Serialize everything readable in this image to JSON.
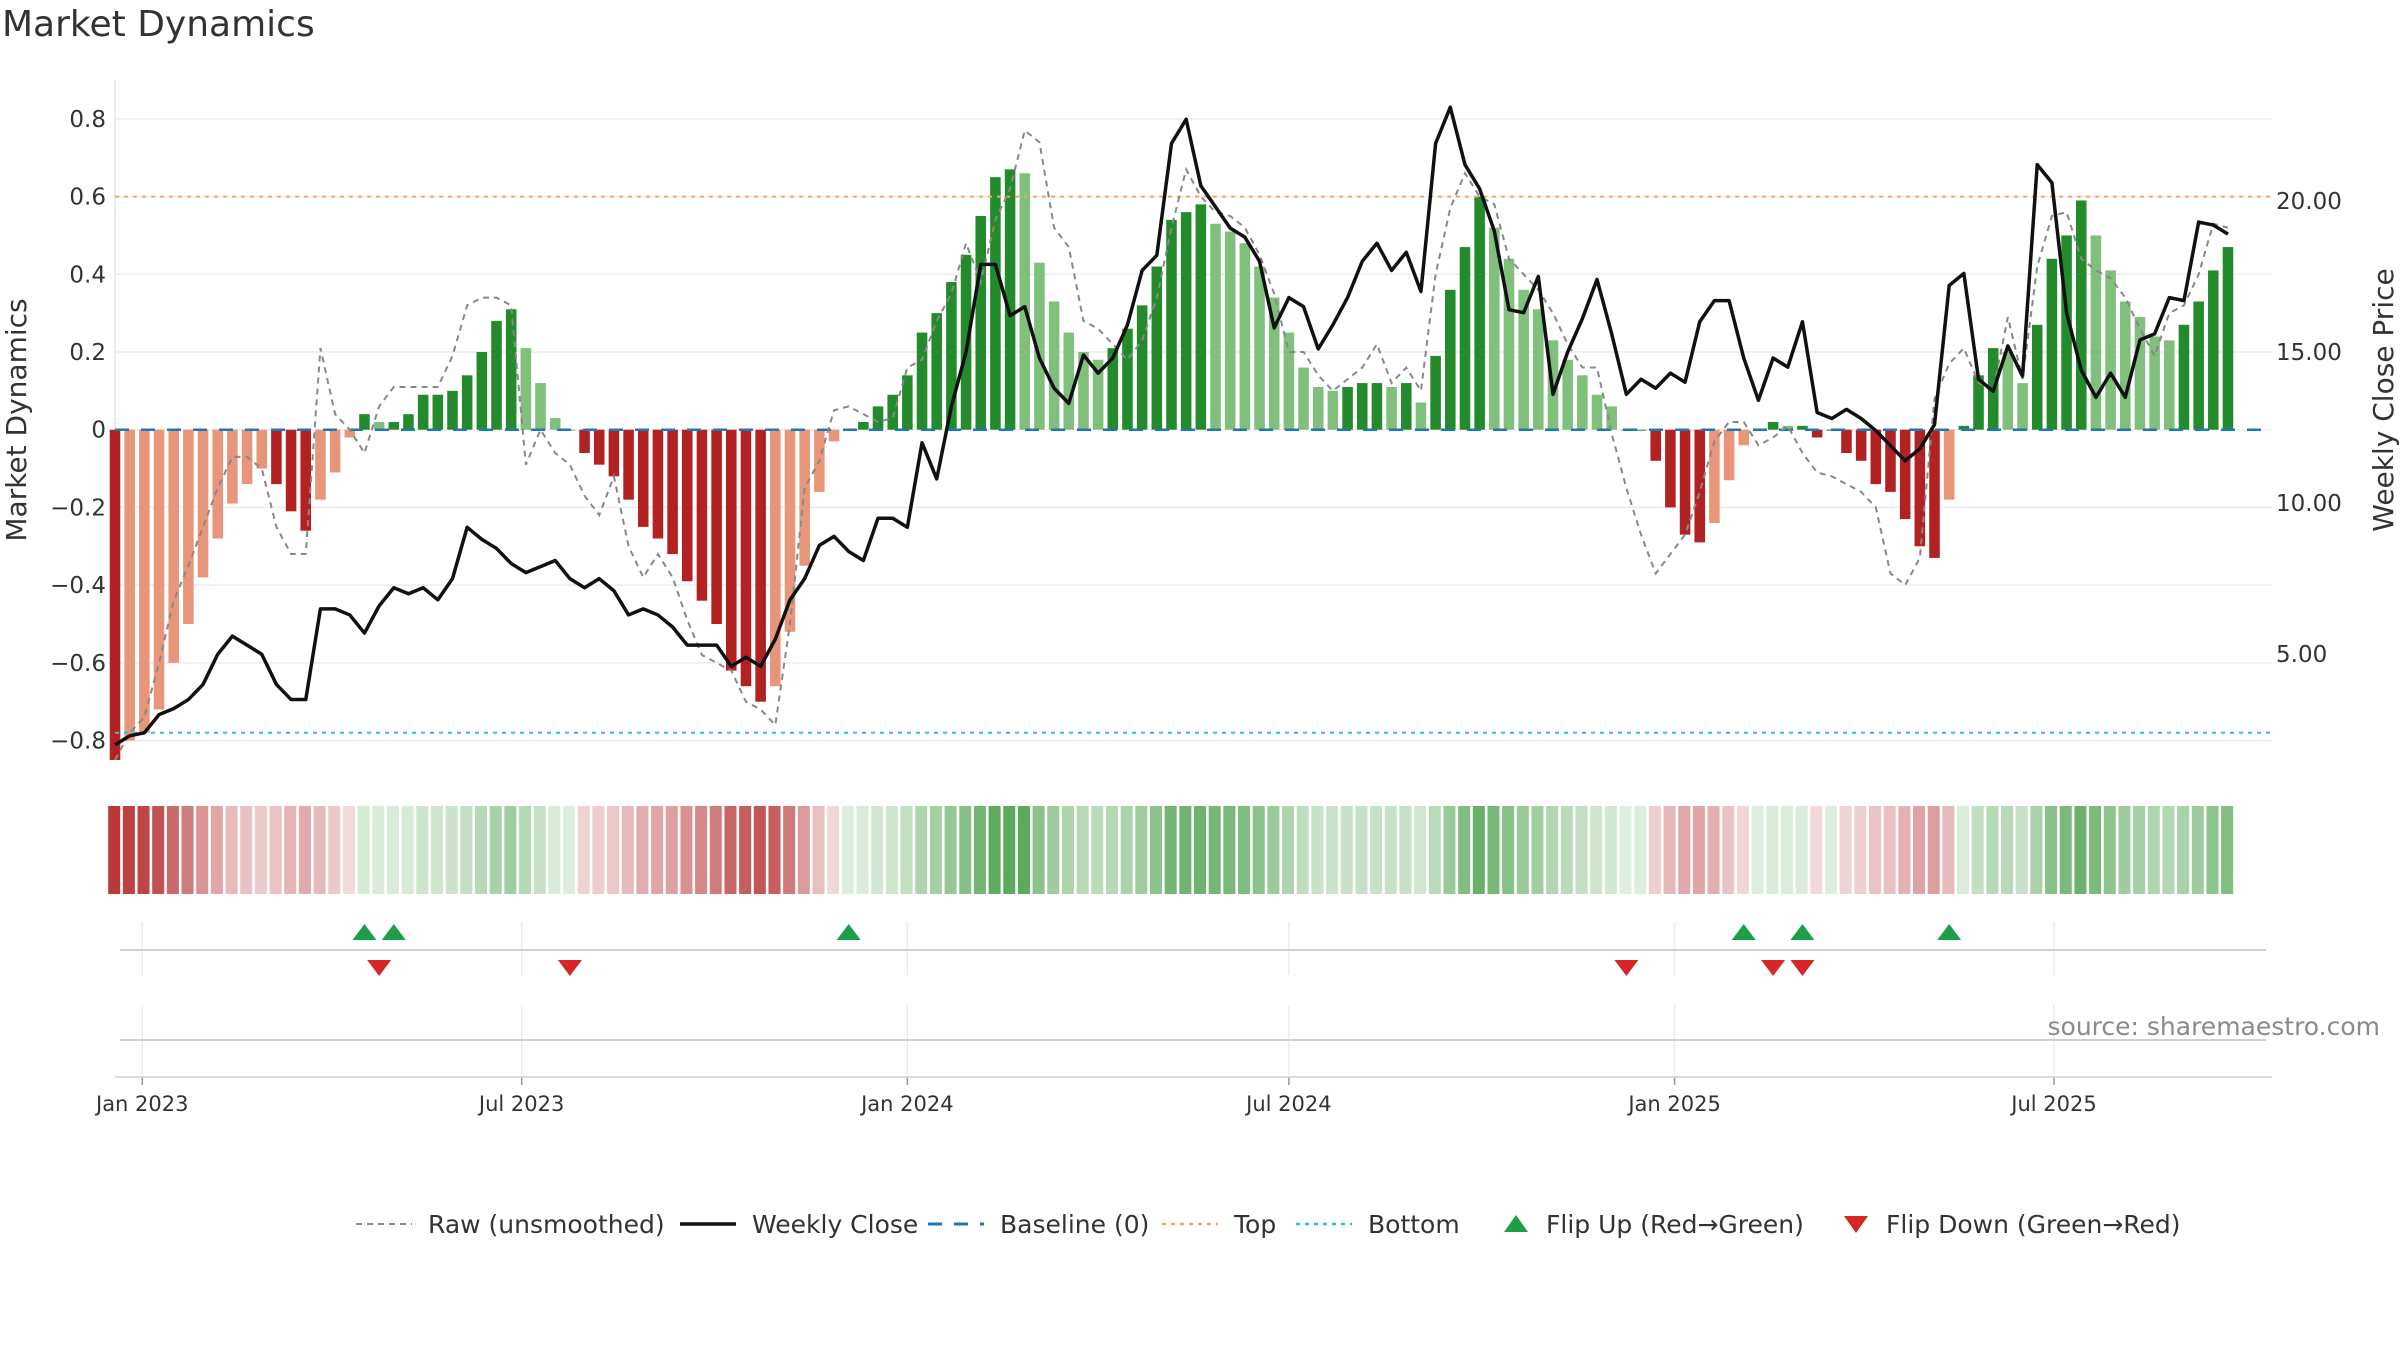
{
  "title": "Market Dynamics",
  "source": "source: sharemaestro.com",
  "colors": {
    "strong_green": "#238b2b",
    "light_green": "#80bf7c",
    "strong_red": "#b22222",
    "light_red": "#e8967a",
    "close_line": "#111111",
    "raw_line": "#888888",
    "baseline": "#1f77b4",
    "top": "#f4a460",
    "bottom": "#2ec4c4",
    "flip_up": "#1e9e48",
    "flip_down": "#d62728"
  },
  "chart_data": {
    "type": "bar",
    "title": "Market Dynamics",
    "ylabel": "Market Dynamics",
    "y2label": "Weekly Close Price",
    "ylim": [
      -0.85,
      0.9
    ],
    "y2lim": [
      1.5,
      24.0
    ],
    "yticks": [
      -0.8,
      -0.6,
      -0.4,
      -0.2,
      0,
      0.2,
      0.4,
      0.6,
      0.8
    ],
    "ytick_labels": [
      "−0.8",
      "−0.6",
      "−0.4",
      "−0.2",
      "0",
      "0.2",
      "0.4",
      "0.6",
      "0.8"
    ],
    "y2ticks": [
      5,
      10,
      15,
      20
    ],
    "y2tick_labels": [
      "5.00",
      "10.00",
      "15.00",
      "20.00"
    ],
    "x_range": [
      "2022-12-19",
      "2025-10-13"
    ],
    "xticks": [
      "2023-01-01",
      "2023-07-01",
      "2024-01-01",
      "2024-07-01",
      "2025-01-01",
      "2025-07-01"
    ],
    "xtick_labels": [
      "Jan 2023",
      "Jul 2023",
      "Jan 2024",
      "Jul 2024",
      "Jan 2025",
      "Jul 2025"
    ],
    "first_week": "2022-12-19",
    "top_level": 0.6,
    "bottom_level": -0.78,
    "baseline_level": 0,
    "grid": true,
    "legend_position": "bottom",
    "legend": [
      "Raw (unsmoothed)",
      "Weekly Close",
      "Baseline (0)",
      "Top",
      "Bottom",
      "Flip Up (Red→Green)",
      "Flip Down (Green→Red)"
    ],
    "dynamics": [
      -0.85,
      -0.8,
      -0.78,
      -0.72,
      -0.6,
      -0.5,
      -0.38,
      -0.28,
      -0.19,
      -0.14,
      -0.1,
      -0.14,
      -0.21,
      -0.26,
      -0.18,
      -0.11,
      -0.02,
      0.04,
      0.02,
      0.02,
      0.04,
      0.09,
      0.09,
      0.1,
      0.14,
      0.2,
      0.28,
      0.31,
      0.21,
      0.12,
      0.03,
      0.0,
      -0.06,
      -0.09,
      -0.12,
      -0.18,
      -0.25,
      -0.28,
      -0.32,
      -0.39,
      -0.44,
      -0.5,
      -0.62,
      -0.66,
      -0.7,
      -0.66,
      -0.52,
      -0.35,
      -0.16,
      -0.03,
      0.0,
      0.02,
      0.06,
      0.09,
      0.14,
      0.25,
      0.3,
      0.38,
      0.45,
      0.55,
      0.65,
      0.67,
      0.66,
      0.43,
      0.33,
      0.25,
      0.2,
      0.18,
      0.21,
      0.26,
      0.32,
      0.42,
      0.54,
      0.56,
      0.58,
      0.53,
      0.51,
      0.48,
      0.42,
      0.34,
      0.25,
      0.16,
      0.11,
      0.1,
      0.11,
      0.12,
      0.12,
      0.11,
      0.12,
      0.07,
      0.19,
      0.36,
      0.47,
      0.6,
      0.52,
      0.44,
      0.36,
      0.31,
      0.23,
      0.18,
      0.14,
      0.09,
      0.06,
      0.0,
      0.0,
      -0.08,
      -0.2,
      -0.27,
      -0.29,
      -0.24,
      -0.13,
      -0.04,
      0.0,
      0.02,
      0.01,
      0.01,
      -0.02,
      0.0,
      -0.06,
      -0.08,
      -0.14,
      -0.16,
      -0.23,
      -0.3,
      -0.33,
      -0.18,
      0.01,
      0.14,
      0.21,
      0.2,
      0.12,
      0.27,
      0.44,
      0.5,
      0.59,
      0.5,
      0.41,
      0.33,
      0.29,
      0.24,
      0.23,
      0.27,
      0.33,
      0.41,
      0.47
    ],
    "raw": [
      -0.85,
      -0.78,
      -0.74,
      -0.6,
      -0.44,
      -0.35,
      -0.25,
      -0.15,
      -0.07,
      -0.07,
      -0.1,
      -0.25,
      -0.32,
      -0.32,
      0.21,
      0.04,
      0.0,
      -0.06,
      0.06,
      0.11,
      0.11,
      0.11,
      0.11,
      0.19,
      0.32,
      0.34,
      0.34,
      0.32,
      -0.09,
      0.0,
      -0.06,
      -0.09,
      -0.17,
      -0.22,
      -0.12,
      -0.3,
      -0.38,
      -0.32,
      -0.38,
      -0.49,
      -0.58,
      -0.6,
      -0.62,
      -0.7,
      -0.72,
      -0.76,
      -0.5,
      -0.15,
      -0.08,
      0.05,
      0.06,
      0.04,
      0.02,
      0.03,
      0.16,
      0.18,
      0.28,
      0.35,
      0.48,
      0.38,
      0.54,
      0.62,
      0.77,
      0.74,
      0.52,
      0.47,
      0.28,
      0.26,
      0.22,
      0.18,
      0.23,
      0.34,
      0.52,
      0.67,
      0.6,
      0.56,
      0.55,
      0.52,
      0.45,
      0.35,
      0.2,
      0.2,
      0.14,
      0.1,
      0.13,
      0.16,
      0.22,
      0.12,
      0.16,
      0.1,
      0.4,
      0.57,
      0.66,
      0.6,
      0.58,
      0.44,
      0.4,
      0.36,
      0.3,
      0.22,
      0.16,
      0.16,
      -0.01,
      -0.15,
      -0.27,
      -0.37,
      -0.32,
      -0.27,
      -0.16,
      -0.03,
      0.02,
      0.02,
      -0.04,
      -0.02,
      0.01,
      -0.06,
      -0.11,
      -0.12,
      -0.14,
      -0.16,
      -0.2,
      -0.37,
      -0.4,
      -0.33,
      0.08,
      0.17,
      0.21,
      0.12,
      0.1,
      0.29,
      0.13,
      0.42,
      0.55,
      0.56,
      0.44,
      0.41,
      0.39,
      0.34,
      0.26,
      0.19,
      0.3,
      0.32,
      0.4,
      0.53,
      0.52
    ],
    "close": [
      2.0,
      2.3,
      2.4,
      3.0,
      3.2,
      3.5,
      4.0,
      5.0,
      5.6,
      5.3,
      5.0,
      4.0,
      3.5,
      3.5,
      6.5,
      6.5,
      6.3,
      5.7,
      6.6,
      7.2,
      7.0,
      7.2,
      6.8,
      7.5,
      9.2,
      8.8,
      8.5,
      8.0,
      7.7,
      7.9,
      8.1,
      7.5,
      7.2,
      7.5,
      7.1,
      6.3,
      6.5,
      6.3,
      5.9,
      5.3,
      5.3,
      5.3,
      4.6,
      4.9,
      4.6,
      5.5,
      6.8,
      7.5,
      8.6,
      8.9,
      8.4,
      8.1,
      9.5,
      9.5,
      9.2,
      12.0,
      10.8,
      13.2,
      15.0,
      17.9,
      17.9,
      16.2,
      16.5,
      14.8,
      13.8,
      13.3,
      14.9,
      14.3,
      14.8,
      15.9,
      17.7,
      18.2,
      21.9,
      22.7,
      20.5,
      19.8,
      19.1,
      18.8,
      18.0,
      15.8,
      16.8,
      16.5,
      15.1,
      15.9,
      16.8,
      18.0,
      18.6,
      17.7,
      18.3,
      17.0,
      21.9,
      23.1,
      21.2,
      20.4,
      19.0,
      16.4,
      16.3,
      17.5,
      13.6,
      15.0,
      16.1,
      17.4,
      15.6,
      13.6,
      14.1,
      13.8,
      14.3,
      14.0,
      16.0,
      16.7,
      16.7,
      14.8,
      13.4,
      14.8,
      14.5,
      16.0,
      13.0,
      12.8,
      13.1,
      12.8,
      12.4,
      11.9,
      11.4,
      11.8,
      12.6,
      17.2,
      17.6,
      14.1,
      13.7,
      15.2,
      14.2,
      21.2,
      20.6,
      16.3,
      14.4,
      13.5,
      14.3,
      13.5,
      15.4,
      15.6,
      16.8,
      16.7,
      19.3,
      19.2,
      18.9
    ],
    "flip_up_weeks": [
      17,
      19,
      50,
      111,
      115,
      125
    ],
    "flip_down_weeks": [
      18,
      31,
      103,
      113,
      115
    ]
  }
}
